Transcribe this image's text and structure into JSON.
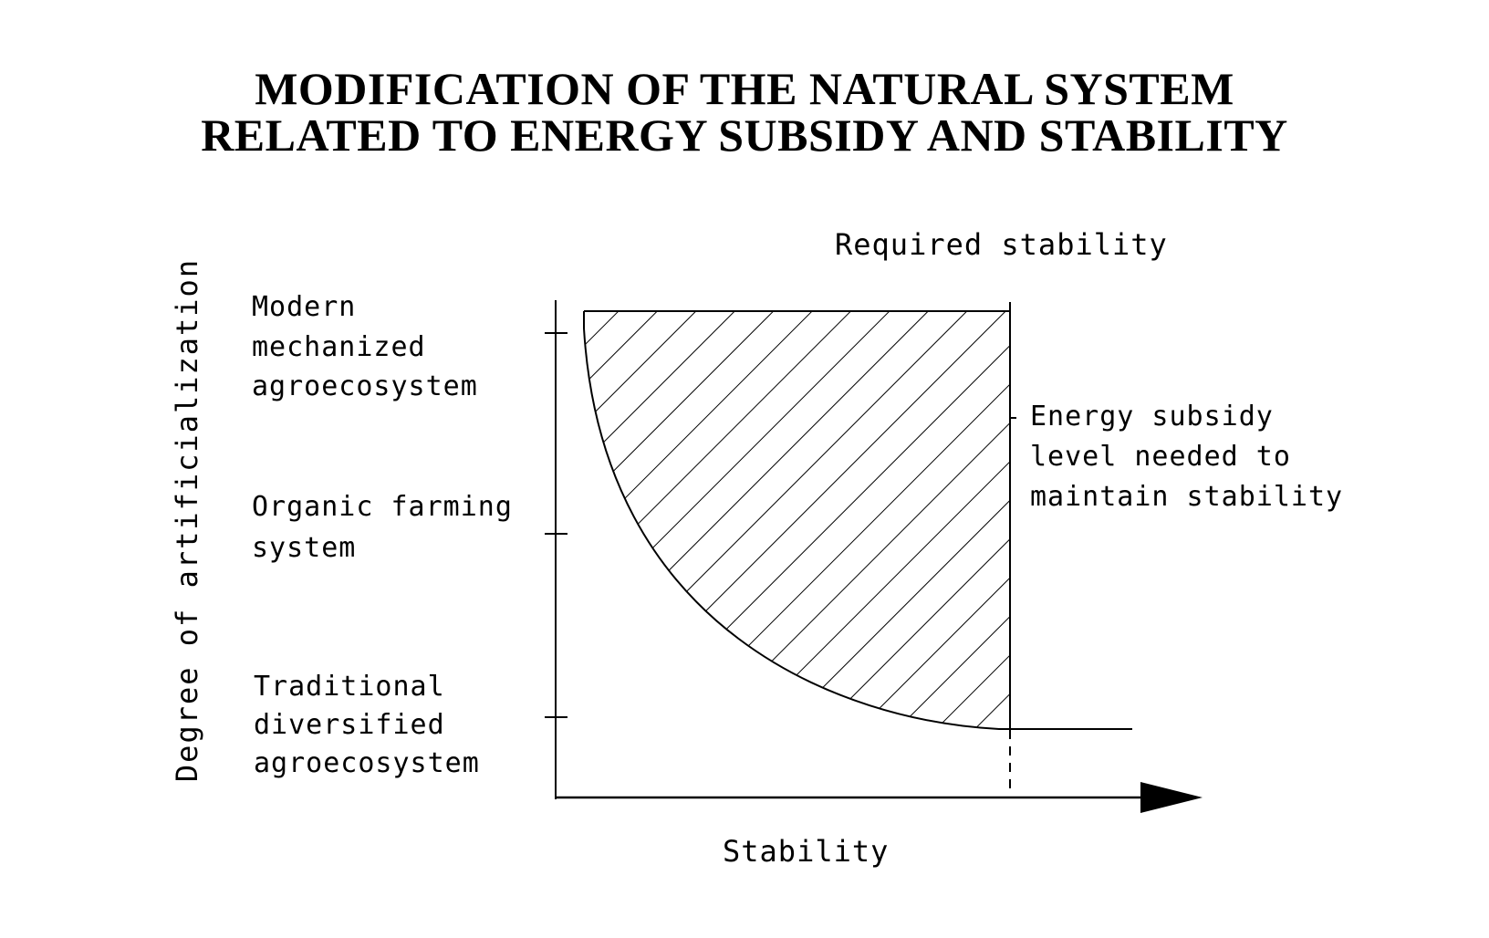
{
  "title": {
    "line1": "MODIFICATION OF THE NATURAL SYSTEM",
    "line2": "RELATED TO ENERGY SUBSIDY AND STABILITY"
  },
  "axes": {
    "x_label": "Stability",
    "y_label": "Degree of artificialization"
  },
  "levels": {
    "modern": [
      "Modern",
      "mechanized",
      "agroecosystem"
    ],
    "organic": [
      "Organic farming",
      "system"
    ],
    "traditional": [
      "Traditional",
      "diversified",
      "agroecosystem"
    ]
  },
  "annotations": {
    "required_stability": "Required stability",
    "energy_subsidy": [
      "Energy subsidy",
      "level needed to",
      "maintain stability"
    ]
  }
}
